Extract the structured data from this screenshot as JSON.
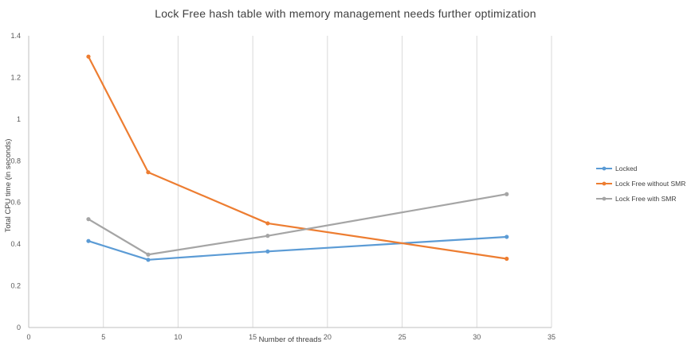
{
  "chart_data": {
    "type": "line",
    "title": "Lock Free hash table with memory management needs further optimization",
    "xlabel": "Number of threads",
    "ylabel": "Total CPU time (in seconds)",
    "xlim": [
      0,
      35
    ],
    "ylim": [
      0,
      1.4
    ],
    "xticks": [
      "0",
      "5",
      "10",
      "15",
      "20",
      "25",
      "30",
      "35"
    ],
    "yticks": [
      "0",
      "0.2",
      "0.4",
      "0.6",
      "0.8",
      "1",
      "1.2",
      "1.4"
    ],
    "grid": "vertical",
    "legend_position": "right",
    "series": [
      {
        "name": "Locked",
        "color": "#5B9BD5",
        "x": [
          4,
          8,
          16,
          32
        ],
        "values": [
          0.415,
          0.325,
          0.365,
          0.435
        ]
      },
      {
        "name": "Lock Free without SMR",
        "color": "#ED7D31",
        "x": [
          4,
          8,
          16,
          32
        ],
        "values": [
          1.3,
          0.745,
          0.5,
          0.33
        ]
      },
      {
        "name": "Lock Free with SMR",
        "color": "#A5A5A5",
        "x": [
          4,
          8,
          16,
          32
        ],
        "values": [
          0.52,
          0.35,
          0.44,
          0.64
        ]
      }
    ]
  }
}
